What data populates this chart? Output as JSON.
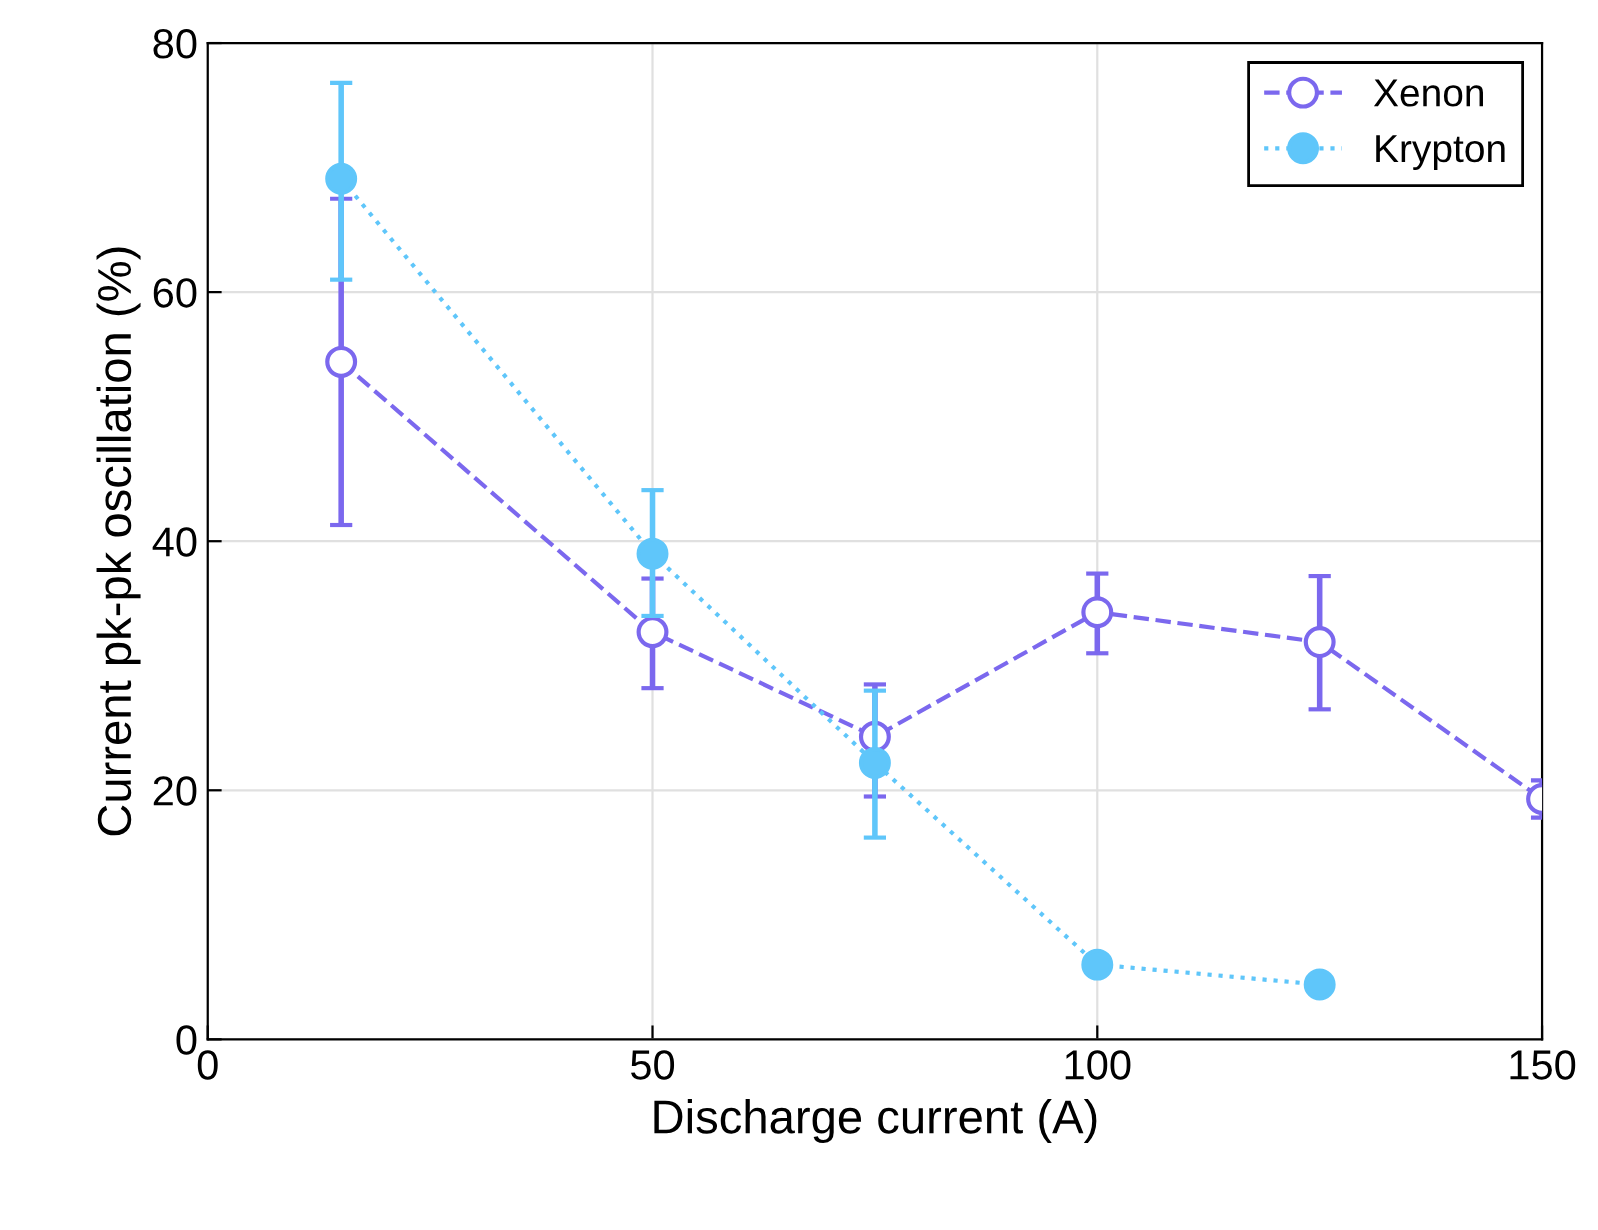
{
  "chart_data": {
    "type": "line",
    "xlabel": "Discharge current (A)",
    "ylabel": "Current pk-pk oscillation (%)",
    "xlim": [
      0,
      150
    ],
    "xticks": [
      0,
      50,
      100,
      150
    ],
    "ylim": [
      0,
      80
    ],
    "yticks": [
      0,
      20,
      40,
      60,
      80
    ],
    "grid": true,
    "legend": "top right",
    "marker": "circle",
    "series": [
      {
        "name": "Xenon",
        "color": "#7b68ee",
        "line_style": "dashed",
        "x": [
          15,
          50,
          75,
          100,
          125,
          150
        ],
        "values": [
          54.4,
          32.7,
          24.3,
          34.3,
          31.9,
          19.3
        ],
        "errors": [
          [
            41.3,
            67.5
          ],
          [
            28.2,
            37.0
          ],
          [
            19.5,
            28.5
          ],
          [
            31.0,
            37.4
          ],
          [
            26.5,
            37.2
          ],
          [
            17.8,
            20.8
          ]
        ]
      },
      {
        "name": "Krypton",
        "color": "#5fc6fa",
        "line_style": "dotted",
        "x": [
          15,
          50,
          75,
          100,
          125
        ],
        "values": [
          69.1,
          39.0,
          22.2,
          6.0,
          4.4
        ],
        "errors": [
          [
            61.0,
            76.8
          ],
          [
            34.0,
            44.1
          ],
          [
            16.2,
            28.0
          ],
          null,
          null
        ]
      }
    ]
  }
}
